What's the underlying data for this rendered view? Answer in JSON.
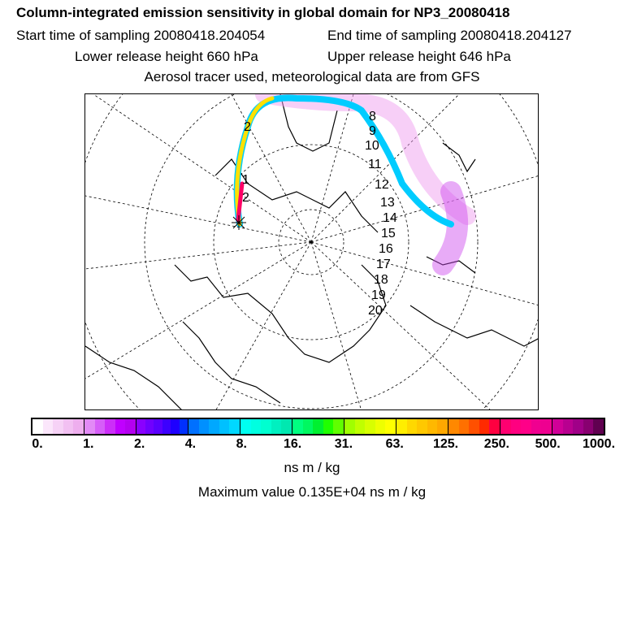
{
  "header": {
    "title": "Column-integrated emission sensitivity in global domain for NP3_20080418",
    "start_time": "Start time of sampling 20080418.204054",
    "end_time": "End time of sampling 20080418.204127",
    "lower_release": "Lower release height  660 hPa",
    "upper_release": "Upper release height  646 hPa",
    "tracer_info": "Aerosol tracer used, meteorological data are from GFS"
  },
  "map": {
    "projection": "polar stereographic (north pole)",
    "release_marker": "release-point-star",
    "track_labels": [
      "1",
      "2",
      "2",
      "8",
      "9",
      "10",
      "11",
      "12",
      "13",
      "14",
      "15",
      "16",
      "17",
      "18",
      "19",
      "20"
    ]
  },
  "chart_data": {
    "type": "heatmap",
    "colorbar": {
      "tick_labels": [
        "0.",
        "1.",
        "2.",
        "4.",
        "8.",
        "16.",
        "31.",
        "63.",
        "125.",
        "250.",
        "500.",
        "1000."
      ],
      "segment_colors": [
        [
          "#ffffff",
          "#fbe6fb",
          "#f6d2f6",
          "#f2c0f2",
          "#eeaeee"
        ],
        [
          "#e28af6",
          "#d65ef8",
          "#cc2ef8",
          "#c000ff",
          "#b400f0"
        ],
        [
          "#8a00ff",
          "#7000ff",
          "#5a00ff",
          "#3c00ff",
          "#1e00ff",
          "#0030ff"
        ],
        [
          "#0070ff",
          "#0090ff",
          "#00a8ff",
          "#00c0ff",
          "#00d8ff"
        ],
        [
          "#00fff0",
          "#00ffe0",
          "#00ffd0",
          "#00f0c0",
          "#00e8b0"
        ],
        [
          "#00ff80",
          "#00f860",
          "#00f030",
          "#20ff00",
          "#60ff00"
        ],
        [
          "#a0ff00",
          "#c0ff00",
          "#d8ff00",
          "#eeff00",
          "#ffff00"
        ],
        [
          "#ffee00",
          "#ffd800",
          "#ffc800",
          "#ffb800",
          "#ffa800"
        ],
        [
          "#ff8800",
          "#ff7000",
          "#ff5000",
          "#ff2a00",
          "#ff0040"
        ],
        [
          "#ff0070",
          "#ff0080",
          "#ff0088",
          "#f00090",
          "#ee0090"
        ],
        [
          "#d00098",
          "#b80090",
          "#a00088",
          "#880070",
          "#600050"
        ]
      ],
      "units": "ns m / kg"
    },
    "max_value_text": "Maximum value  0.135E+04 ns m / kg"
  }
}
